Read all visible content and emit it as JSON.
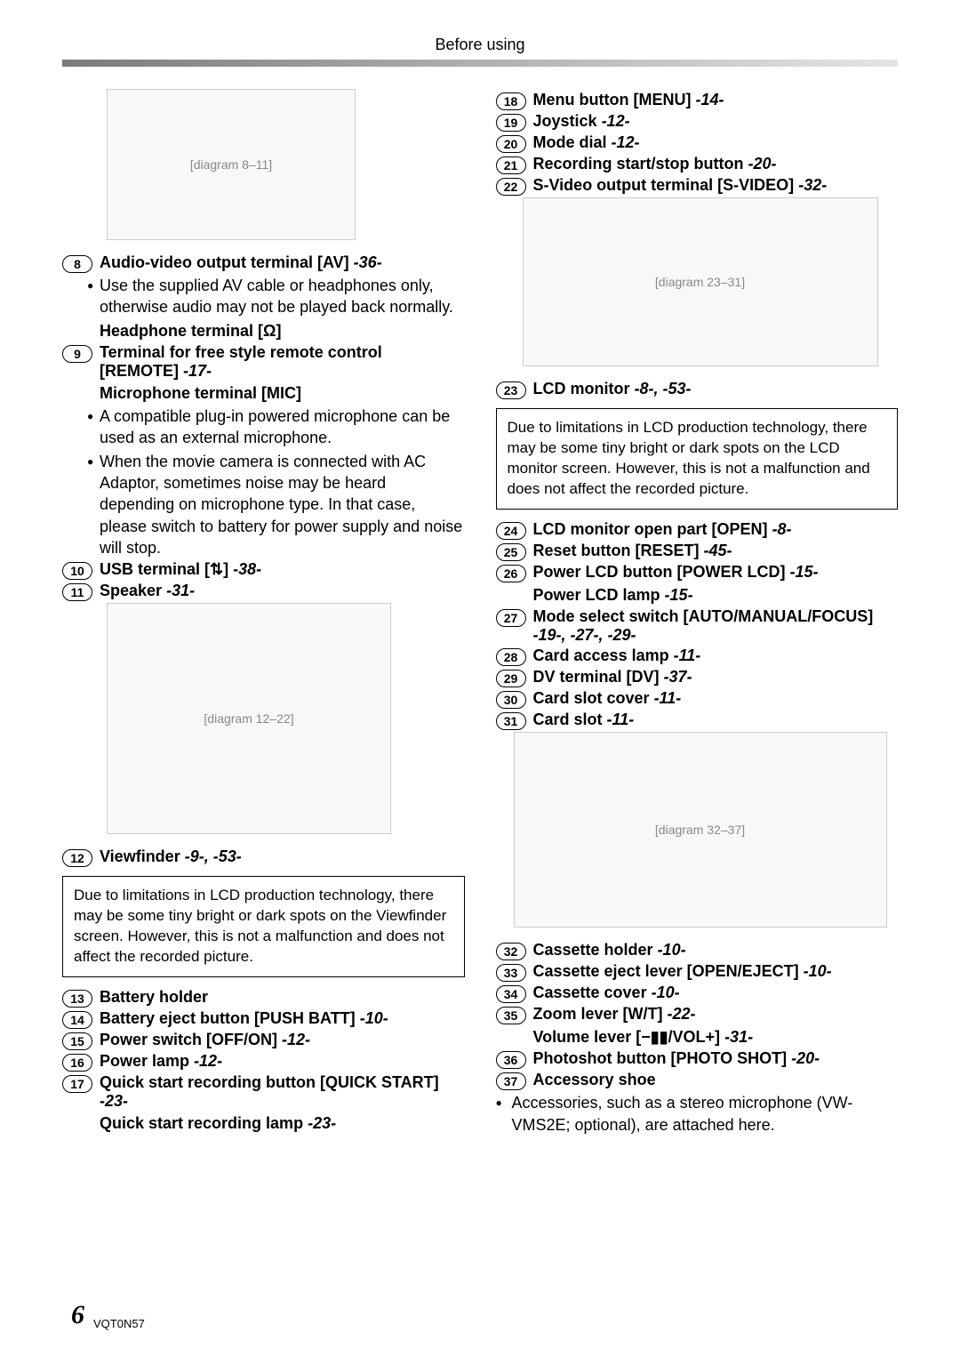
{
  "header": "Before using",
  "left": {
    "items_a": [
      {
        "n": "8",
        "label": "Audio-video output terminal [AV]",
        "ref": "-36-"
      }
    ],
    "sub_a": [
      "Use the supplied AV cable or headphones only, otherwise audio may not be played back normally."
    ],
    "headphone": "Headphone terminal [Ω]",
    "items_b": [
      {
        "n": "9",
        "label": "Terminal for free style remote control [REMOTE]",
        "ref": "-17-"
      }
    ],
    "mic": "Microphone terminal [MIC]",
    "sub_b": [
      "A compatible plug-in powered microphone can be used as an external microphone.",
      "When the movie camera is connected with AC Adaptor, sometimes noise may be heard depending on microphone type. In that case, please switch to battery for power supply and noise will stop."
    ],
    "items_c": [
      {
        "n": "10",
        "label": "USB terminal [⇅]",
        "ref": "-38-"
      },
      {
        "n": "11",
        "label": "Speaker",
        "ref": "-31-"
      }
    ],
    "caption12": {
      "n": "12",
      "label": "Viewfinder",
      "ref": "-9-, -53-"
    },
    "note1": "Due to limitations in LCD production technology, there may be some tiny bright or dark spots on the Viewfinder screen. However, this is not a malfunction and does not affect the recorded picture.",
    "items_d": [
      {
        "n": "13",
        "label": "Battery holder",
        "ref": ""
      },
      {
        "n": "14",
        "label": "Battery eject button [PUSH BATT]",
        "ref": "-10-"
      },
      {
        "n": "15",
        "label": "Power switch [OFF/ON]",
        "ref": "-12-"
      },
      {
        "n": "16",
        "label": "Power lamp",
        "ref": "-12-"
      },
      {
        "n": "17",
        "label": "Quick start recording button [QUICK START]",
        "ref": "-23-"
      }
    ],
    "quick_lamp": {
      "label": "Quick start recording lamp",
      "ref": "-23-"
    }
  },
  "right": {
    "items_e": [
      {
        "n": "18",
        "label": "Menu button [MENU]",
        "ref": "-14-"
      },
      {
        "n": "19",
        "label": "Joystick",
        "ref": "-12-"
      },
      {
        "n": "20",
        "label": "Mode dial",
        "ref": "-12-"
      },
      {
        "n": "21",
        "label": "Recording start/stop button",
        "ref": "-20-"
      },
      {
        "n": "22",
        "label": "S-Video output terminal [S-VIDEO]",
        "ref": "-32-"
      }
    ],
    "caption23": {
      "n": "23",
      "label": "LCD monitor",
      "ref": "-8-, -53-"
    },
    "note2": "Due to limitations in LCD production technology, there may be some tiny bright or dark spots on the LCD monitor screen. However, this is not a malfunction and does not affect the recorded picture.",
    "items_f": [
      {
        "n": "24",
        "label": "LCD monitor open part [OPEN]",
        "ref": "-8-"
      },
      {
        "n": "25",
        "label": "Reset button [RESET]",
        "ref": "-45-"
      },
      {
        "n": "26",
        "label": "Power LCD button [POWER LCD]",
        "ref": "-15-"
      }
    ],
    "power_lcd_lamp": {
      "label": "Power LCD lamp",
      "ref": "-15-"
    },
    "items_g": [
      {
        "n": "27",
        "label": "Mode select switch [AUTO/MANUAL/FOCUS]",
        "ref": "-19-, -27-, -29-"
      },
      {
        "n": "28",
        "label": "Card access lamp",
        "ref": "-11-"
      },
      {
        "n": "29",
        "label": "DV terminal [DV]",
        "ref": "-37-"
      },
      {
        "n": "30",
        "label": "Card slot cover",
        "ref": "-11-"
      },
      {
        "n": "31",
        "label": "Card slot",
        "ref": "-11-"
      }
    ],
    "items_h": [
      {
        "n": "32",
        "label": "Cassette holder",
        "ref": "-10-"
      },
      {
        "n": "33",
        "label": "Cassette eject lever [OPEN/EJECT]",
        "ref": "-10-"
      },
      {
        "n": "34",
        "label": "Cassette cover",
        "ref": "-10-"
      },
      {
        "n": "35",
        "label": "Zoom lever [W/T]",
        "ref": "-22-"
      }
    ],
    "volume": {
      "label": "Volume lever [−▮▮/VOL+]",
      "ref": "-31-"
    },
    "items_i": [
      {
        "n": "36",
        "label": "Photoshot button [PHOTO SHOT]",
        "ref": "-20-"
      },
      {
        "n": "37",
        "label": "Accessory shoe",
        "ref": ""
      }
    ],
    "accessory_note": "Accessories, such as a stereo microphone (VW-VMS2E; optional), are attached here."
  },
  "page": {
    "num": "6",
    "code": "VQT0N57"
  }
}
